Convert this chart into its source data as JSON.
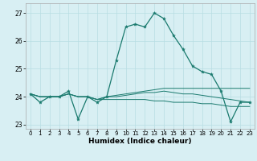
{
  "xlabel": "Humidex (Indice chaleur)",
  "background_color": "#d8eff3",
  "grid_color": "#b8dde3",
  "line_color": "#1a7a6e",
  "xlim": [
    -0.5,
    23.5
  ],
  "ylim": [
    22.85,
    27.35
  ],
  "yticks": [
    23,
    24,
    25,
    26,
    27
  ],
  "xticks": [
    0,
    1,
    2,
    3,
    4,
    5,
    6,
    7,
    8,
    9,
    10,
    11,
    12,
    13,
    14,
    15,
    16,
    17,
    18,
    19,
    20,
    21,
    22,
    23
  ],
  "series1_x": [
    0,
    1,
    2,
    3,
    4,
    5,
    6,
    7,
    8,
    9,
    10,
    11,
    12,
    13,
    14,
    15,
    16,
    17,
    18,
    19,
    20,
    21,
    22,
    23
  ],
  "series1_y": [
    24.1,
    23.8,
    24.0,
    24.0,
    24.2,
    23.2,
    24.0,
    23.8,
    24.0,
    25.3,
    26.5,
    26.6,
    26.5,
    27.0,
    26.8,
    26.2,
    25.7,
    25.1,
    24.9,
    24.8,
    24.2,
    23.1,
    23.8,
    23.8
  ],
  "series2_x": [
    0,
    1,
    2,
    3,
    4,
    5,
    6,
    7,
    8,
    9,
    10,
    11,
    12,
    13,
    14,
    15,
    16,
    17,
    18,
    19,
    20,
    21,
    22,
    23
  ],
  "series2_y": [
    24.1,
    24.0,
    24.0,
    24.0,
    24.1,
    24.0,
    24.0,
    23.9,
    24.0,
    24.05,
    24.1,
    24.15,
    24.2,
    24.25,
    24.3,
    24.3,
    24.3,
    24.3,
    24.3,
    24.3,
    24.3,
    24.3,
    24.3,
    24.3
  ],
  "series3_x": [
    0,
    1,
    2,
    3,
    4,
    5,
    6,
    7,
    8,
    9,
    10,
    11,
    12,
    13,
    14,
    15,
    16,
    17,
    18,
    19,
    20,
    21,
    22,
    23
  ],
  "series3_y": [
    24.1,
    24.0,
    24.0,
    24.0,
    24.1,
    24.0,
    24.0,
    23.9,
    24.0,
    24.0,
    24.05,
    24.1,
    24.15,
    24.15,
    24.2,
    24.15,
    24.1,
    24.1,
    24.05,
    24.0,
    23.95,
    23.9,
    23.85,
    23.8
  ],
  "series4_x": [
    0,
    1,
    2,
    3,
    4,
    5,
    6,
    7,
    8,
    9,
    10,
    11,
    12,
    13,
    14,
    15,
    16,
    17,
    18,
    19,
    20,
    21,
    22,
    23
  ],
  "series4_y": [
    24.1,
    24.0,
    24.0,
    24.0,
    24.1,
    24.0,
    24.0,
    23.9,
    23.9,
    23.9,
    23.9,
    23.9,
    23.9,
    23.85,
    23.85,
    23.8,
    23.8,
    23.8,
    23.75,
    23.75,
    23.7,
    23.65,
    23.65,
    23.65
  ]
}
